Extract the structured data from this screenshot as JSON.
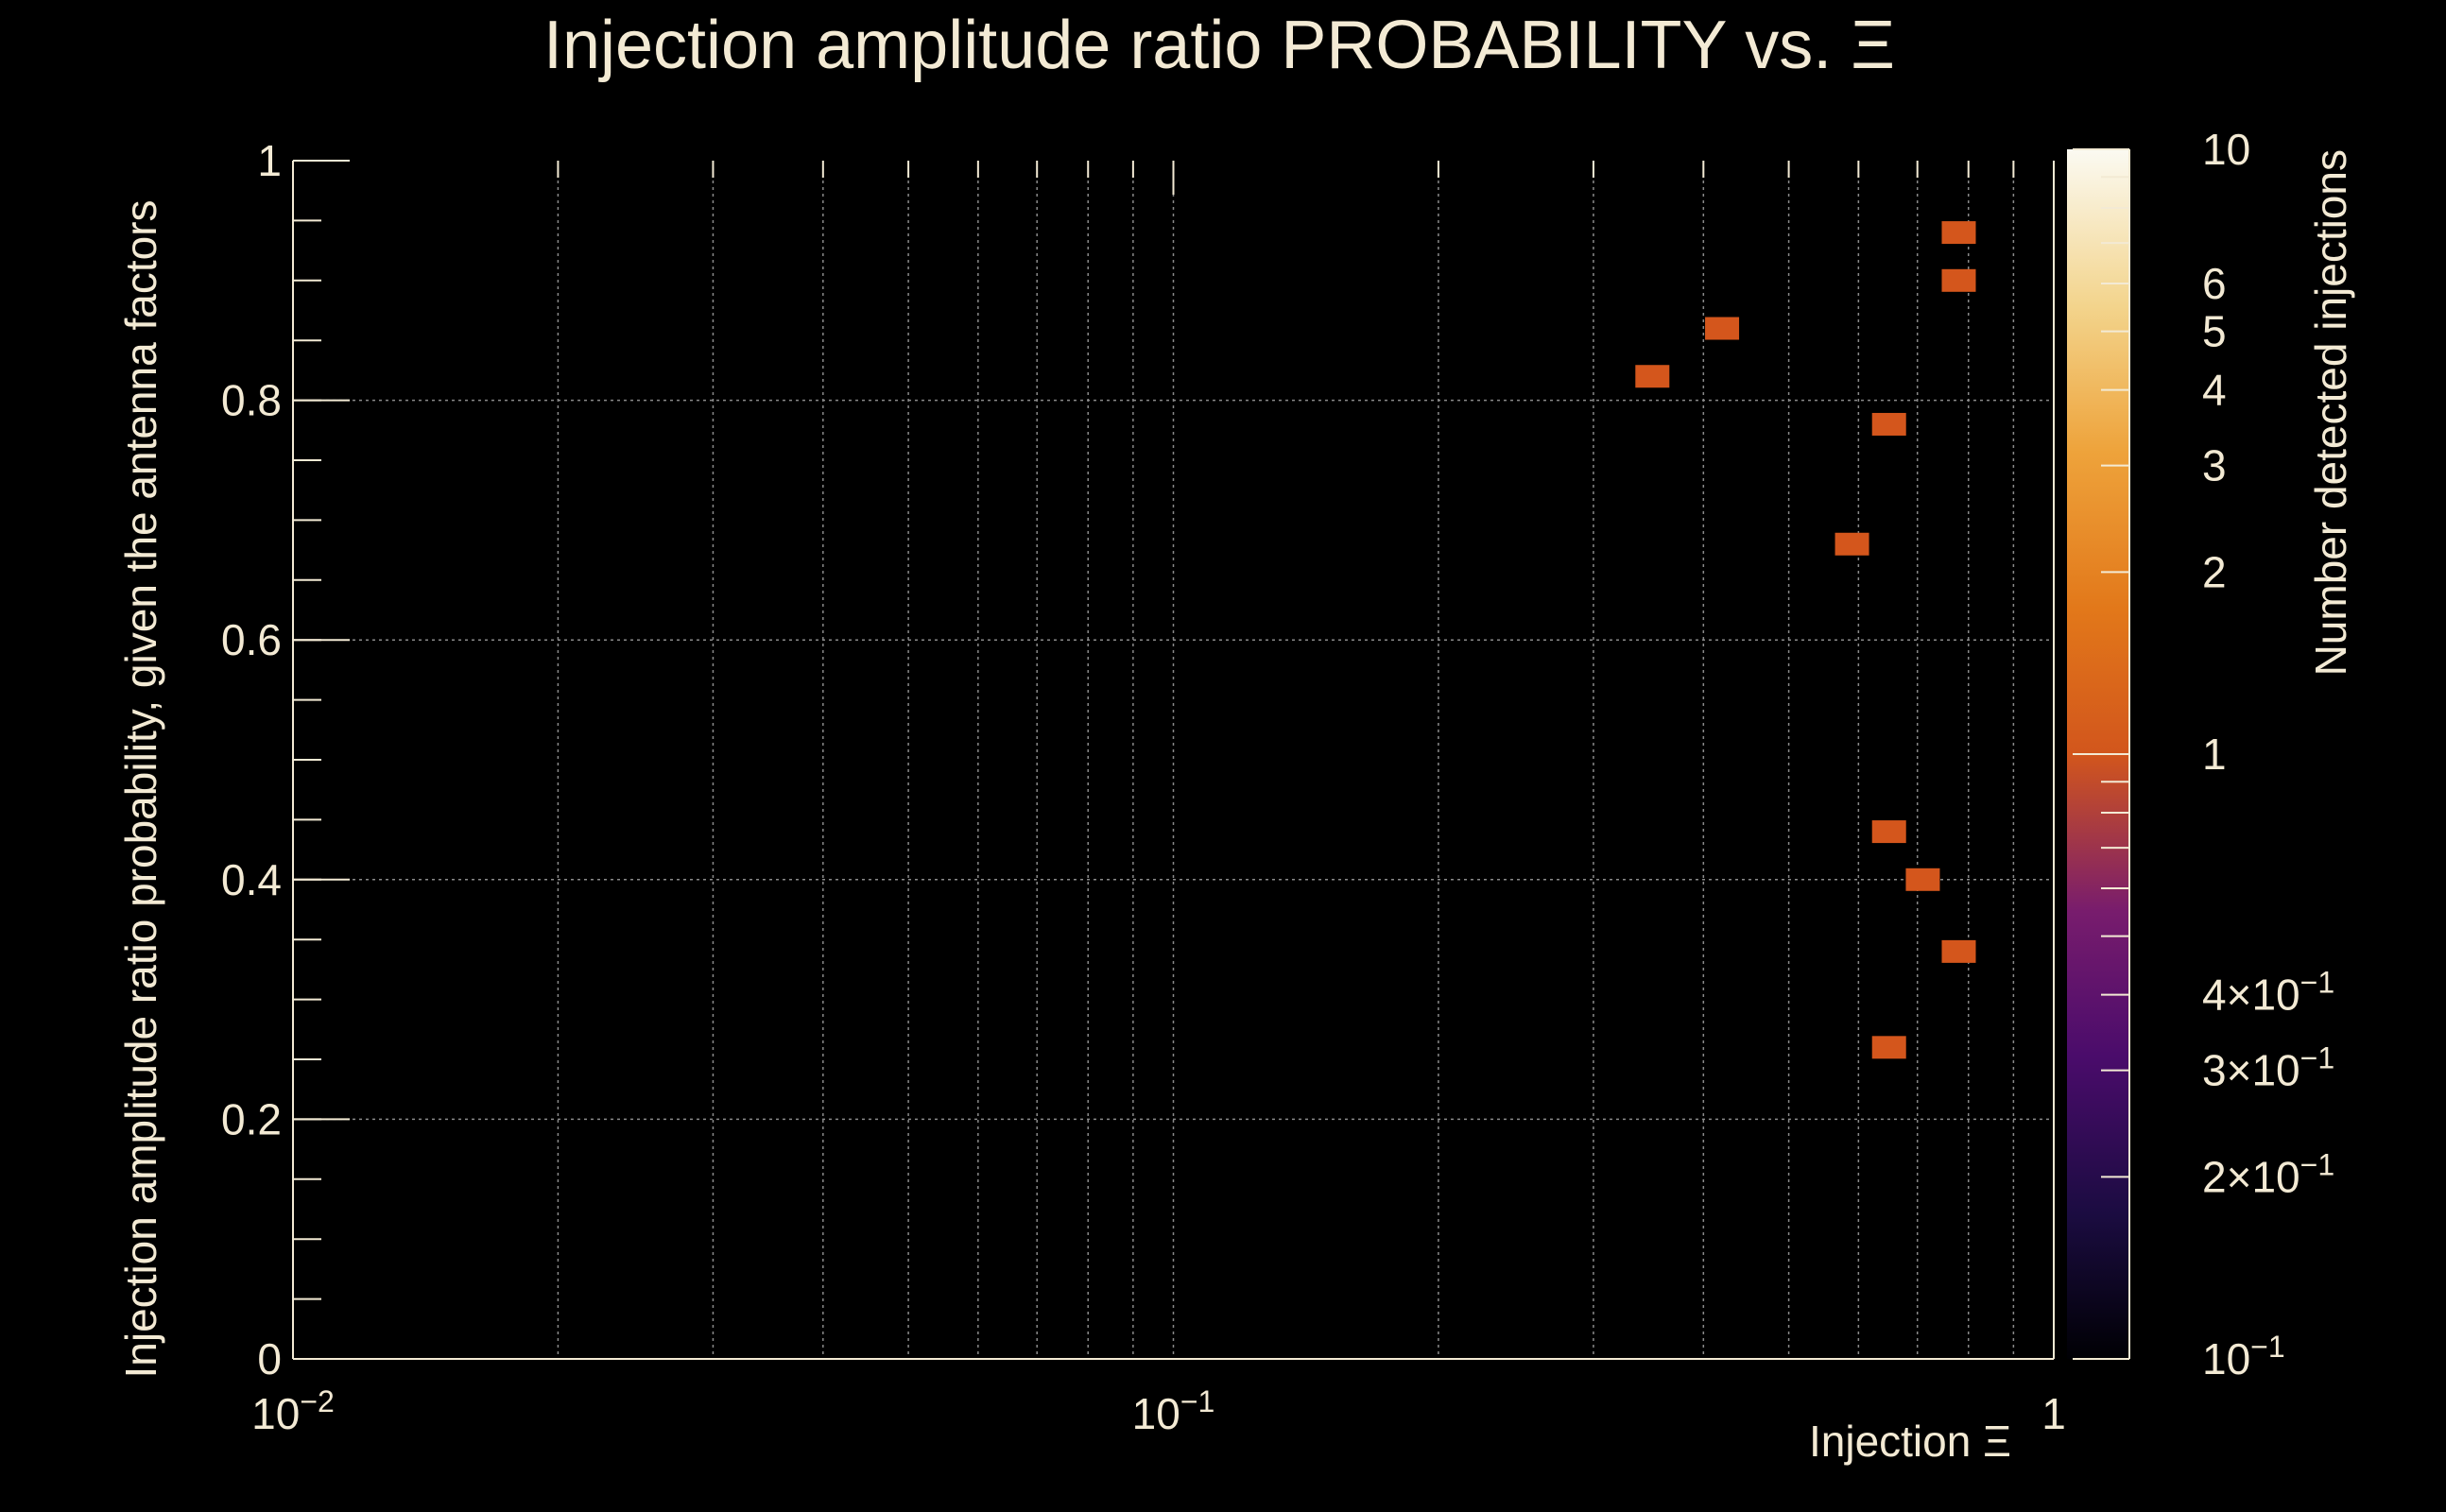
{
  "chart_data": {
    "type": "heatmap",
    "title": "Injection amplitude ratio PROBABILITY vs.  Ξ",
    "xlabel": "Injection Ξ",
    "ylabel": "Injection amplitude ratio probability, given the antenna factors",
    "zlabel": "Number detected injections",
    "x_scale": "log",
    "xlim": [
      0.01,
      1
    ],
    "ylim": [
      0,
      1
    ],
    "zlim": [
      0.1,
      10
    ],
    "z_scale": "log",
    "grid": true,
    "x_ticks": [
      {
        "value": 0.01,
        "base": "10",
        "exp": "−2"
      },
      {
        "value": 0.1,
        "base": "10",
        "exp": "−1"
      },
      {
        "value": 1,
        "base": "1",
        "exp": ""
      }
    ],
    "y_ticks": [
      {
        "value": 0,
        "label": "0"
      },
      {
        "value": 0.2,
        "label": "0.2"
      },
      {
        "value": 0.4,
        "label": "0.4"
      },
      {
        "value": 0.6,
        "label": "0.6"
      },
      {
        "value": 0.8,
        "label": "0.8"
      },
      {
        "value": 1,
        "label": "1"
      }
    ],
    "z_ticks": [
      {
        "value": 10,
        "label": "10"
      },
      {
        "value": 6,
        "label": "6"
      },
      {
        "value": 5,
        "label": "5"
      },
      {
        "value": 4,
        "label": "4"
      },
      {
        "value": 3,
        "label": "3"
      },
      {
        "value": 2,
        "label": "2"
      },
      {
        "value": 1,
        "label": "1"
      },
      {
        "value": 0.4,
        "label": "4×10−1"
      },
      {
        "value": 0.3,
        "label": "3×10−1"
      },
      {
        "value": 0.2,
        "label": "2×10−1"
      },
      {
        "value": 0.1,
        "label": "10−1"
      }
    ],
    "points": [
      {
        "x": 0.78,
        "y": 0.94,
        "z": 1
      },
      {
        "x": 0.78,
        "y": 0.9,
        "z": 1
      },
      {
        "x": 0.42,
        "y": 0.86,
        "z": 1
      },
      {
        "x": 0.35,
        "y": 0.82,
        "z": 1
      },
      {
        "x": 0.65,
        "y": 0.78,
        "z": 1
      },
      {
        "x": 0.59,
        "y": 0.68,
        "z": 1
      },
      {
        "x": 0.65,
        "y": 0.44,
        "z": 1
      },
      {
        "x": 0.71,
        "y": 0.4,
        "z": 1
      },
      {
        "x": 0.78,
        "y": 0.34,
        "z": 1
      },
      {
        "x": 0.65,
        "y": 0.26,
        "z": 1
      }
    ],
    "colors": {
      "cell": "#d4561c",
      "text": "#f3ead4",
      "background": "#000000",
      "colormap": [
        "#000004",
        "#1f0c48",
        "#550f6d",
        "#88226a",
        "#ba3655",
        "#e35933",
        "#f98e09",
        "#f8c932",
        "#fcffa4"
      ]
    }
  }
}
